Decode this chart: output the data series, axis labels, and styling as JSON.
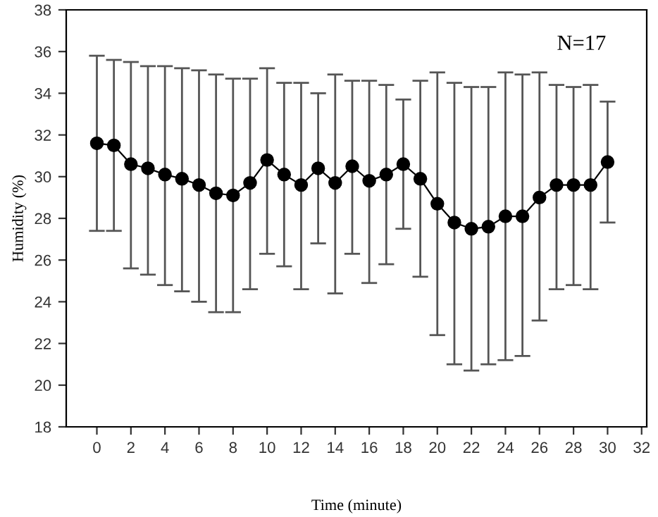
{
  "chart_data": {
    "type": "line",
    "xlabel": "Time (minute)",
    "ylabel": "Humidity (%)",
    "x": [
      0,
      1,
      2,
      3,
      4,
      5,
      6,
      7,
      8,
      9,
      10,
      11,
      12,
      13,
      14,
      15,
      16,
      17,
      18,
      19,
      20,
      21,
      22,
      23,
      24,
      25,
      26,
      27,
      28,
      29,
      30
    ],
    "series": [
      {
        "color": "#000000",
        "values": [
          31.6,
          31.5,
          30.6,
          30.4,
          30.1,
          29.9,
          29.6,
          29.2,
          29.1,
          29.7,
          30.8,
          30.1,
          29.6,
          30.4,
          29.7,
          30.5,
          29.8,
          30.1,
          30.6,
          29.9,
          28.7,
          27.8,
          27.5,
          27.6,
          28.1,
          28.1,
          29.0,
          29.6,
          29.6,
          29.6,
          30.7
        ],
        "errors": [
          [
            27.4,
            35.8
          ],
          [
            27.4,
            35.6
          ],
          [
            25.6,
            35.5
          ],
          [
            25.3,
            35.3
          ],
          [
            24.8,
            35.3
          ],
          [
            24.5,
            35.2
          ],
          [
            24.0,
            35.1
          ],
          [
            23.5,
            34.9
          ],
          [
            23.5,
            34.7
          ],
          [
            24.6,
            34.7
          ],
          [
            26.3,
            35.2
          ],
          [
            25.7,
            34.5
          ],
          [
            24.6,
            34.5
          ],
          [
            26.8,
            34.0
          ],
          [
            24.4,
            34.9
          ],
          [
            26.3,
            34.6
          ],
          [
            24.9,
            34.6
          ],
          [
            25.8,
            34.4
          ],
          [
            27.5,
            33.7
          ],
          [
            25.2,
            34.6
          ],
          [
            22.4,
            35.0
          ],
          [
            21.0,
            34.5
          ],
          [
            20.7,
            34.3
          ],
          [
            21.0,
            34.3
          ],
          [
            21.2,
            35.0
          ],
          [
            21.4,
            34.9
          ],
          [
            23.1,
            35.0
          ],
          [
            24.6,
            34.4
          ],
          [
            24.8,
            34.3
          ],
          [
            24.6,
            34.4
          ],
          [
            27.8,
            33.6
          ]
        ]
      }
    ],
    "annotations": [
      "N=17"
    ],
    "marker": "circle",
    "line_style": "solid",
    "xlim": [
      -1.8,
      32.3
    ],
    "xticks": [
      0,
      2,
      4,
      6,
      8,
      10,
      12,
      14,
      16,
      18,
      20,
      22,
      24,
      26,
      28,
      30,
      32
    ],
    "ylim": [
      18,
      38
    ],
    "yticks": [
      18,
      20,
      22,
      24,
      26,
      28,
      30,
      32,
      34,
      36,
      38
    ],
    "grid": false,
    "legend": false
  }
}
